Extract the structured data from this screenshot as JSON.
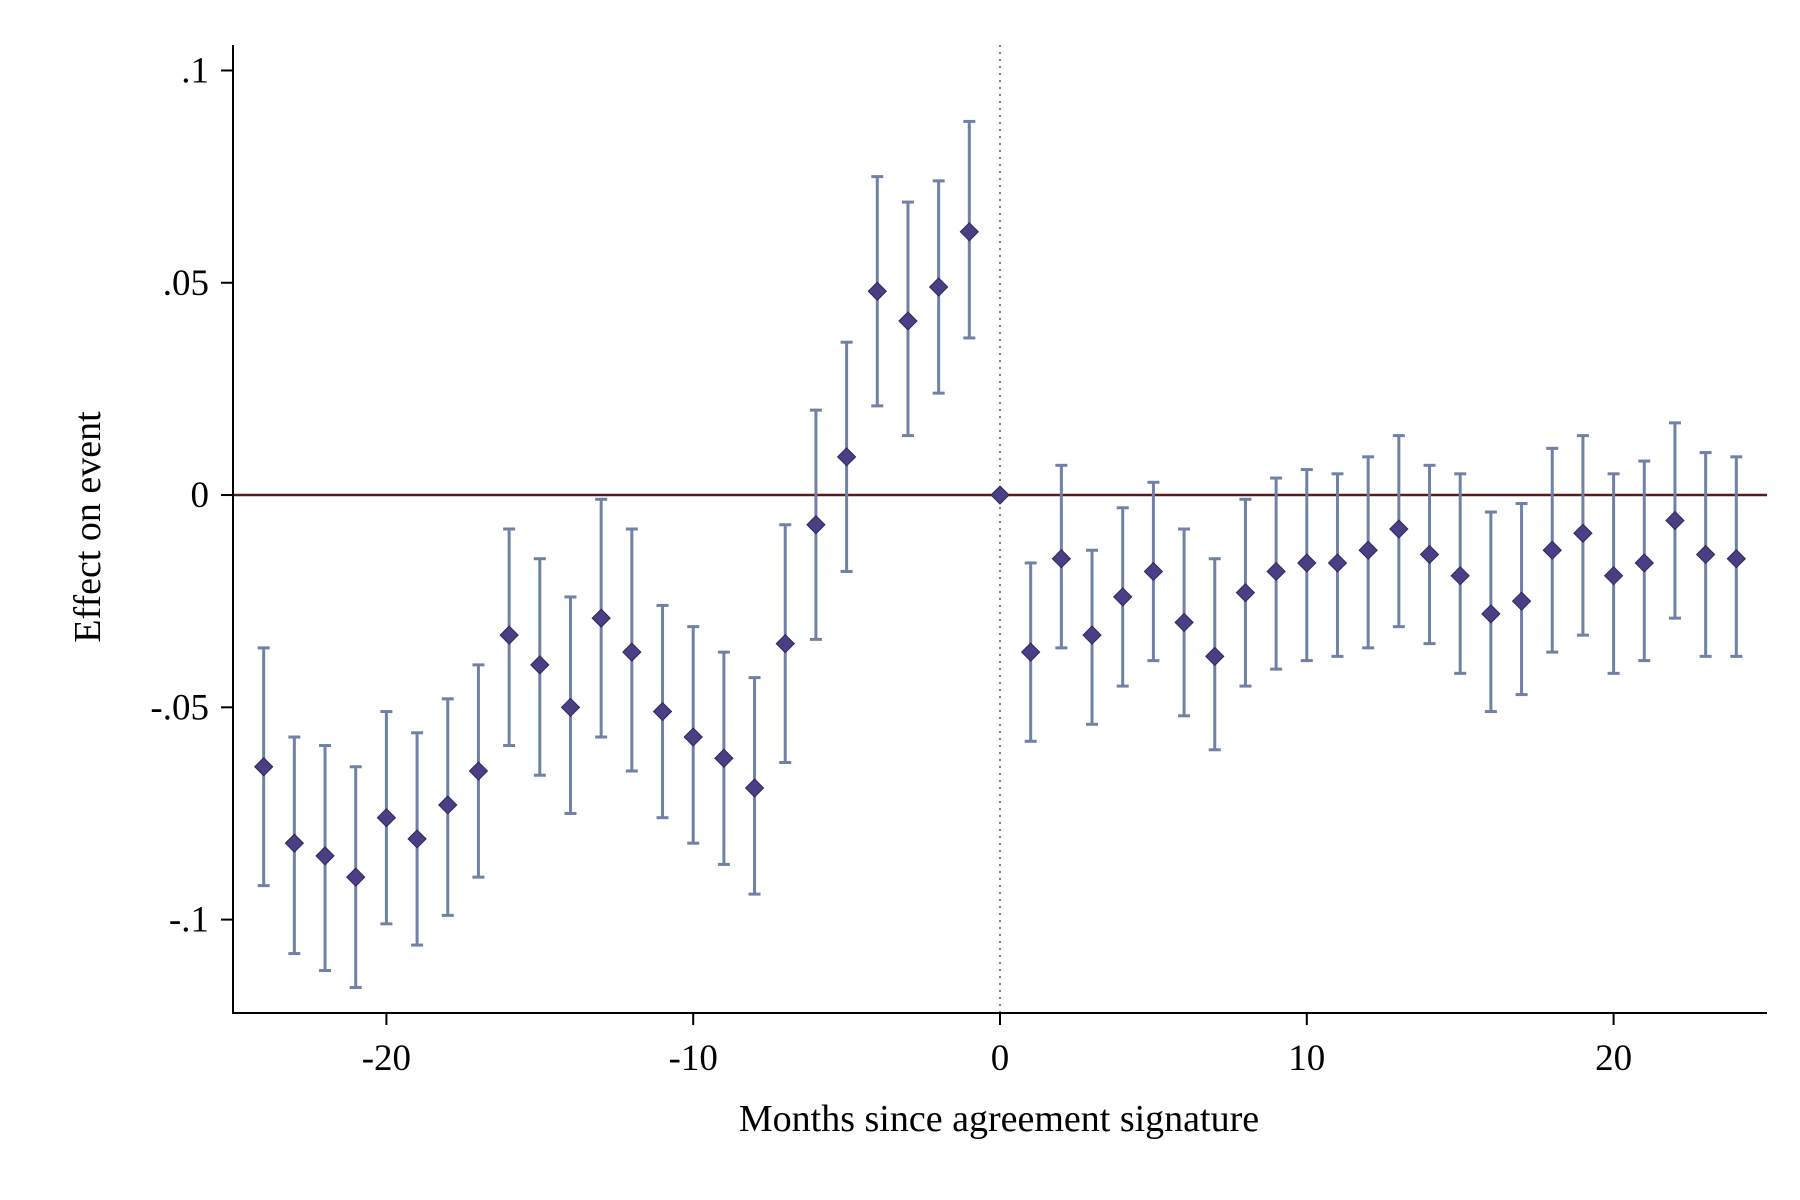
{
  "chart_data": {
    "type": "scatter",
    "subtype": "coefficient-plot-with-confidence-intervals",
    "xlabel": "Months since agreement signature",
    "ylabel": "Effect on event",
    "xlim": [
      -25,
      25
    ],
    "ylim": [
      -0.122,
      0.106
    ],
    "x_ticks": [
      -20,
      -10,
      0,
      10,
      20
    ],
    "x_tick_labels": [
      "-20",
      "-10",
      "0",
      "10",
      "20"
    ],
    "y_ticks": [
      0.1,
      0.05,
      0,
      -0.05,
      -0.1
    ],
    "y_tick_labels": [
      ".1",
      ".05",
      "0",
      "-.05",
      "-.1"
    ],
    "reference_lines": {
      "horizontal_y": 0,
      "vertical_x": 0
    },
    "grid": false,
    "legend": "none",
    "colors": {
      "marker": "#4a3f85",
      "error_bar": "#6f82a6",
      "hline": "#5a1a1a",
      "vline": "#555555",
      "axis": "#000000"
    },
    "points": [
      {
        "x": -24,
        "y": -0.064,
        "lo": -0.092,
        "hi": -0.036
      },
      {
        "x": -23,
        "y": -0.082,
        "lo": -0.108,
        "hi": -0.057
      },
      {
        "x": -22,
        "y": -0.085,
        "lo": -0.112,
        "hi": -0.059
      },
      {
        "x": -21,
        "y": -0.09,
        "lo": -0.116,
        "hi": -0.064
      },
      {
        "x": -20,
        "y": -0.076,
        "lo": -0.101,
        "hi": -0.051
      },
      {
        "x": -19,
        "y": -0.081,
        "lo": -0.106,
        "hi": -0.056
      },
      {
        "x": -18,
        "y": -0.073,
        "lo": -0.099,
        "hi": -0.048
      },
      {
        "x": -17,
        "y": -0.065,
        "lo": -0.09,
        "hi": -0.04
      },
      {
        "x": -16,
        "y": -0.033,
        "lo": -0.059,
        "hi": -0.008
      },
      {
        "x": -15,
        "y": -0.04,
        "lo": -0.066,
        "hi": -0.015
      },
      {
        "x": -14,
        "y": -0.05,
        "lo": -0.075,
        "hi": -0.024
      },
      {
        "x": -13,
        "y": -0.029,
        "lo": -0.057,
        "hi": -0.001
      },
      {
        "x": -12,
        "y": -0.037,
        "lo": -0.065,
        "hi": -0.008
      },
      {
        "x": -11,
        "y": -0.051,
        "lo": -0.076,
        "hi": -0.026
      },
      {
        "x": -10,
        "y": -0.057,
        "lo": -0.082,
        "hi": -0.031
      },
      {
        "x": -9,
        "y": -0.062,
        "lo": -0.087,
        "hi": -0.037
      },
      {
        "x": -8,
        "y": -0.069,
        "lo": -0.094,
        "hi": -0.043
      },
      {
        "x": -7,
        "y": -0.035,
        "lo": -0.063,
        "hi": -0.007
      },
      {
        "x": -6,
        "y": -0.007,
        "lo": -0.034,
        "hi": 0.02
      },
      {
        "x": -5,
        "y": 0.009,
        "lo": -0.018,
        "hi": 0.036
      },
      {
        "x": -4,
        "y": 0.048,
        "lo": 0.021,
        "hi": 0.075
      },
      {
        "x": -3,
        "y": 0.041,
        "lo": 0.014,
        "hi": 0.069
      },
      {
        "x": -2,
        "y": 0.049,
        "lo": 0.024,
        "hi": 0.074
      },
      {
        "x": -1,
        "y": 0.062,
        "lo": 0.037,
        "hi": 0.088
      },
      {
        "x": 0,
        "y": 0.0
      },
      {
        "x": 1,
        "y": -0.037,
        "lo": -0.058,
        "hi": -0.016
      },
      {
        "x": 2,
        "y": -0.015,
        "lo": -0.036,
        "hi": 0.007
      },
      {
        "x": 3,
        "y": -0.033,
        "lo": -0.054,
        "hi": -0.013
      },
      {
        "x": 4,
        "y": -0.024,
        "lo": -0.045,
        "hi": -0.003
      },
      {
        "x": 5,
        "y": -0.018,
        "lo": -0.039,
        "hi": 0.003
      },
      {
        "x": 6,
        "y": -0.03,
        "lo": -0.052,
        "hi": -0.008
      },
      {
        "x": 7,
        "y": -0.038,
        "lo": -0.06,
        "hi": -0.015
      },
      {
        "x": 8,
        "y": -0.023,
        "lo": -0.045,
        "hi": -0.001
      },
      {
        "x": 9,
        "y": -0.018,
        "lo": -0.041,
        "hi": 0.004
      },
      {
        "x": 10,
        "y": -0.016,
        "lo": -0.039,
        "hi": 0.006
      },
      {
        "x": 11,
        "y": -0.016,
        "lo": -0.038,
        "hi": 0.005
      },
      {
        "x": 12,
        "y": -0.013,
        "lo": -0.036,
        "hi": 0.009
      },
      {
        "x": 13,
        "y": -0.008,
        "lo": -0.031,
        "hi": 0.014
      },
      {
        "x": 14,
        "y": -0.014,
        "lo": -0.035,
        "hi": 0.007
      },
      {
        "x": 15,
        "y": -0.019,
        "lo": -0.042,
        "hi": 0.005
      },
      {
        "x": 16,
        "y": -0.028,
        "lo": -0.051,
        "hi": -0.004
      },
      {
        "x": 17,
        "y": -0.025,
        "lo": -0.047,
        "hi": -0.002
      },
      {
        "x": 18,
        "y": -0.013,
        "lo": -0.037,
        "hi": 0.011
      },
      {
        "x": 19,
        "y": -0.009,
        "lo": -0.033,
        "hi": 0.014
      },
      {
        "x": 20,
        "y": -0.019,
        "lo": -0.042,
        "hi": 0.005
      },
      {
        "x": 21,
        "y": -0.016,
        "lo": -0.039,
        "hi": 0.008
      },
      {
        "x": 22,
        "y": -0.006,
        "lo": -0.029,
        "hi": 0.017
      },
      {
        "x": 23,
        "y": -0.014,
        "lo": -0.038,
        "hi": 0.01
      },
      {
        "x": 24,
        "y": -0.015,
        "lo": -0.038,
        "hi": 0.009
      }
    ]
  }
}
